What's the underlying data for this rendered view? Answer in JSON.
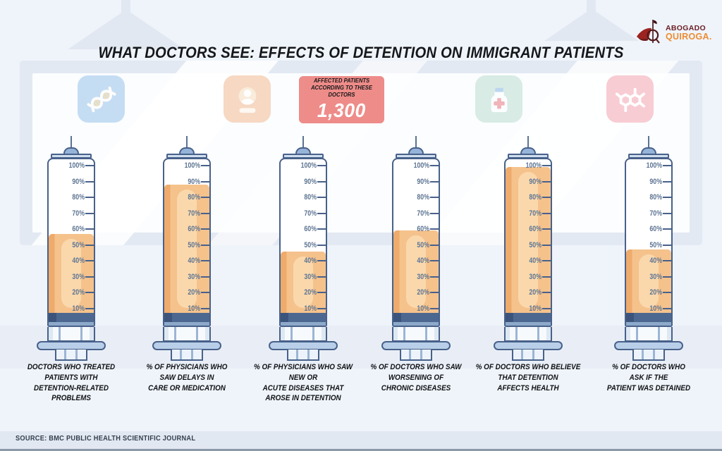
{
  "title": "WHAT DOCTORS SEE: EFFECTS OF DETENTION ON IMMIGRANT PATIENTS",
  "logo": {
    "line1": "ABOGADO",
    "line2": "QUIROGA.",
    "icon": "quiroga-bird-needle-icon"
  },
  "badge": {
    "label": "AFFECTED PATIENTS\nACCORDING TO THESE DOCTORS",
    "value": "1,300",
    "bg_color": "#ee8c89"
  },
  "icons": [
    {
      "name": "dna-icon",
      "bg_color": "#c5ddf3"
    },
    {
      "name": "id-card-icon",
      "bg_color": "#f6d8c3"
    },
    {
      "name": "medicine-bottle-icon",
      "bg_color": "#d8ebe5"
    },
    {
      "name": "molecule-icon",
      "bg_color": "#f8ccd3"
    }
  ],
  "syringes": [
    {
      "label": "DOCTORS WHO TREATED\nPATIENTS WITH\nDETENTION-RELATED\nPROBLEMS"
    },
    {
      "label": "% OF PHYSICIANS WHO\nSAW DELAYS IN\nCARE OR MEDICATION"
    },
    {
      "label": "% OF PHYSICIANS WHO SAW\nNEW OR\nACUTE DISEASES THAT\nAROSE IN DETENTION"
    },
    {
      "label": "% OF DOCTORS WHO SAW\nWORSENING OF\nCHRONIC DISEASES"
    },
    {
      "label": "% OF DOCTORS WHO BELIEVE\nTHAT DETENTION\nAFFECTS HEALTH"
    },
    {
      "label": "% OF DOCTORS WHO\nASK IF THE\nPATIENT WAS DETAINED"
    }
  ],
  "source": "SOURCE: BMC PUBLIC HEALTH SCIENTIFIC JOURNAL",
  "chart_data": {
    "type": "bar",
    "title": "WHAT DOCTORS SEE: EFFECTS OF DETENTION ON IMMIGRANT PATIENTS",
    "unit": "%",
    "categories": [
      "DOCTORS WHO TREATED PATIENTS WITH DETENTION-RELATED PROBLEMS",
      "% OF PHYSICIANS WHO SAW DELAYS IN CARE OR MEDICATION",
      "% OF PHYSICIANS WHO SAW NEW OR ACUTE DISEASES THAT AROSE IN DETENTION",
      "% OF DOCTORS WHO SAW WORSENING OF CHRONIC DISEASES",
      "% OF DOCTORS WHO BELIEVE THAT DETENTION AFFECTS HEALTH",
      "% OF DOCTORS WHO ASK IF THE PATIENT WAS DETAINED"
    ],
    "values": [
      57,
      88,
      46,
      59,
      99,
      47
    ],
    "ylim": [
      0,
      100
    ],
    "scale_ticks": [
      "100%",
      "90%",
      "80%",
      "70%",
      "60%",
      "50%",
      "40%",
      "30%",
      "20%",
      "10%"
    ],
    "annotation": {
      "label": "AFFECTED PATIENTS ACCORDING TO THESE DOCTORS",
      "value": 1300
    },
    "fill_color": "#f5c28c",
    "grid": "in-barrel ticks",
    "legend": "none",
    "source": "SOURCE: BMC PUBLIC HEALTH SCIENTIFIC JOURNAL"
  }
}
